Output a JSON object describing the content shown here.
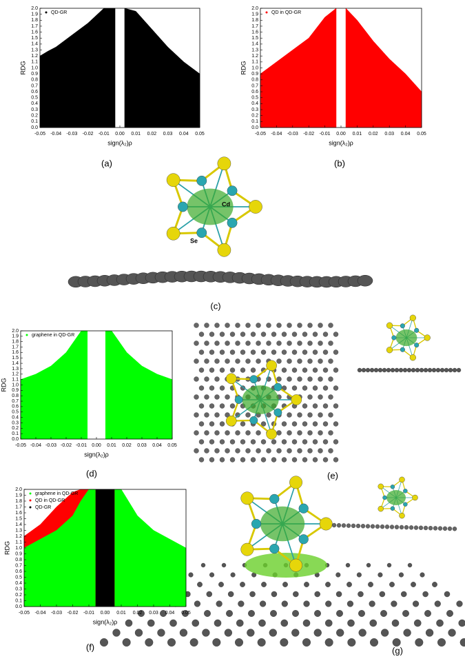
{
  "chart_data": [
    {
      "type": "area",
      "caption": "(a)",
      "xlabel": "sign(λ₂)ρ",
      "ylabel": "RDG",
      "x": [
        -0.05,
        -0.045,
        -0.04,
        -0.03,
        -0.02,
        -0.01,
        -0.003,
        -0.001,
        0.001,
        0.003,
        0.01,
        0.02,
        0.03,
        0.04,
        0.05
      ],
      "series": [
        {
          "name": "QD-GR",
          "color": "#000000",
          "values": [
            1.2,
            1.28,
            1.35,
            1.55,
            1.75,
            2.0,
            2.0,
            null,
            null,
            2.0,
            1.95,
            1.65,
            1.35,
            1.1,
            0.9
          ]
        }
      ],
      "xlim": [
        -0.05,
        0.05
      ],
      "ylim": [
        0,
        2
      ],
      "xticks": [
        -0.05,
        -0.04,
        -0.03,
        -0.02,
        -0.01,
        {
          "value": 0,
          "label": "0.00"
        },
        0.01,
        0.02,
        0.03,
        0.04,
        0.05
      ],
      "yticks": [
        {
          "value": 0,
          "label": "0.0"
        },
        0.1,
        0.2,
        0.3,
        0.4,
        0.5,
        0.6,
        0.7,
        0.8,
        0.9,
        {
          "value": 1,
          "label": "1.0"
        },
        1.1,
        1.2,
        1.3,
        1.4,
        1.5,
        1.6,
        1.7,
        1.8,
        1.9,
        {
          "value": 2,
          "label": "2.0"
        }
      ]
    },
    {
      "type": "area",
      "caption": "(b)",
      "xlabel": "sign(λ₂)ρ",
      "ylabel": "RDG",
      "x": [
        -0.05,
        -0.045,
        -0.04,
        -0.03,
        -0.02,
        -0.01,
        -0.003,
        -0.001,
        0.001,
        0.003,
        0.01,
        0.02,
        0.03,
        0.04,
        0.05
      ],
      "series": [
        {
          "name": "QD in QD-GR",
          "color": "#ff0000",
          "values": [
            0.9,
            1.0,
            1.1,
            1.3,
            1.5,
            1.85,
            2.0,
            null,
            null,
            2.0,
            1.8,
            1.45,
            1.15,
            0.9,
            0.6
          ]
        }
      ],
      "xlim": [
        -0.05,
        0.05
      ],
      "ylim": [
        0,
        2
      ],
      "xticks": [
        -0.05,
        -0.04,
        -0.03,
        -0.02,
        -0.01,
        {
          "value": 0,
          "label": "0.00"
        },
        0.01,
        0.02,
        0.03,
        0.04,
        0.05
      ],
      "yticks": [
        {
          "value": 0,
          "label": "0.0"
        },
        0.1,
        0.2,
        0.3,
        0.4,
        0.5,
        0.6,
        0.7,
        0.8,
        0.9,
        {
          "value": 1,
          "label": "1.0"
        },
        1.1,
        1.2,
        1.3,
        1.4,
        1.5,
        1.6,
        1.7,
        1.8,
        1.9,
        {
          "value": 2,
          "label": "2.0"
        }
      ]
    },
    {
      "type": "area",
      "caption": "(d)",
      "xlabel": "sign(λ₂)ρ",
      "ylabel": "RDG",
      "x": [
        -0.05,
        -0.04,
        -0.03,
        -0.02,
        -0.015,
        -0.01,
        -0.006,
        -0.003,
        0.003,
        0.006,
        0.01,
        0.02,
        0.03,
        0.04,
        0.05
      ],
      "series": [
        {
          "name": "graphene in QD-GR",
          "color": "#00ff00",
          "values": [
            1.1,
            1.2,
            1.35,
            1.6,
            1.8,
            2.0,
            2.0,
            null,
            null,
            2.0,
            2.0,
            1.6,
            1.35,
            1.2,
            1.1
          ]
        }
      ],
      "xlim": [
        -0.05,
        0.05
      ],
      "ylim": [
        0,
        2
      ],
      "xticks": [
        -0.05,
        -0.04,
        -0.03,
        -0.02,
        -0.01,
        {
          "value": 0,
          "label": "0.00"
        },
        0.01,
        0.02,
        0.03,
        0.04,
        0.05
      ],
      "yticks": [
        {
          "value": 0,
          "label": "0.0"
        },
        0.1,
        0.2,
        0.3,
        0.4,
        0.5,
        0.6,
        0.7,
        0.8,
        0.9,
        {
          "value": 1,
          "label": "1.0"
        },
        1.1,
        1.2,
        1.3,
        1.4,
        1.5,
        1.6,
        1.7,
        1.8,
        1.9,
        {
          "value": 2,
          "label": "2.0"
        }
      ]
    },
    {
      "type": "area",
      "caption": "(f)",
      "xlabel": "sign(λ₂)ρ",
      "ylabel": "RDG",
      "x": [
        -0.05,
        -0.04,
        -0.03,
        -0.02,
        -0.015,
        -0.01,
        -0.006,
        -0.003,
        0.003,
        0.006,
        0.01,
        0.02,
        0.03,
        0.04,
        0.05
      ],
      "series": [
        {
          "name": "graphene in QD-GR",
          "color": "#00ff00",
          "values": [
            1.0,
            1.15,
            1.3,
            1.55,
            1.8,
            2.0,
            2.0,
            null,
            null,
            2.0,
            2.0,
            1.55,
            1.3,
            1.15,
            1.0
          ]
        },
        {
          "name": "QD in QD-GR",
          "color": "#ff0000",
          "values": [
            1.2,
            1.4,
            1.7,
            1.95,
            2.0,
            2.0,
            2.0,
            null,
            null,
            2.0,
            1.4,
            0.9,
            0.6,
            0.3,
            0.2
          ]
        },
        {
          "name": "QD-GR",
          "color": "#000000",
          "values": [
            null,
            null,
            null,
            null,
            null,
            2.0,
            2.0,
            2.0,
            2.0,
            2.0,
            null,
            null,
            null,
            null,
            null
          ]
        }
      ],
      "xlim": [
        -0.05,
        0.05
      ],
      "ylim": [
        0,
        2
      ],
      "xticks": [
        -0.05,
        -0.04,
        -0.03,
        -0.02,
        -0.01,
        {
          "value": 0,
          "label": "0.00"
        },
        0.01,
        0.02,
        0.03,
        0.04,
        0.05
      ],
      "yticks": [
        {
          "value": 0,
          "label": "0.0"
        },
        0.1,
        0.2,
        0.3,
        0.4,
        0.5,
        0.6,
        0.7,
        0.8,
        0.9,
        {
          "value": 1,
          "label": "1.0"
        },
        1.1,
        1.2,
        1.3,
        1.4,
        1.5,
        1.6,
        1.7,
        1.8,
        1.9,
        {
          "value": 2,
          "label": "2.0"
        }
      ]
    }
  ],
  "panels": {
    "c": {
      "caption": "(c)",
      "labels": [
        "Cd",
        "Se"
      ]
    },
    "e": {
      "caption": "(e)"
    },
    "g": {
      "caption": "(g)"
    }
  }
}
